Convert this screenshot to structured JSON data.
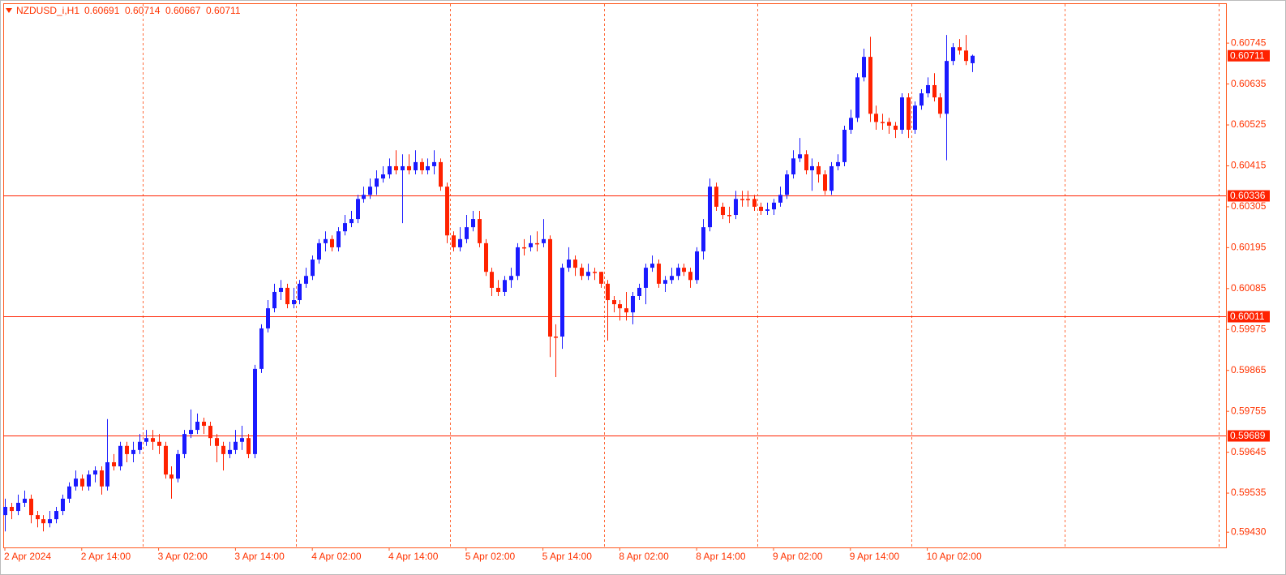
{
  "chart_data": {
    "type": "candlestick",
    "title": "NZDUSD_i,H1",
    "categories": [
      "2 Apr 2024",
      null,
      null,
      null,
      null,
      null,
      null,
      null,
      null,
      null,
      null,
      null,
      "2 Apr 14:00",
      null,
      null,
      null,
      null,
      null,
      null,
      null,
      null,
      null,
      null,
      null,
      "3 Apr 02:00",
      null,
      null,
      null,
      null,
      null,
      null,
      null,
      null,
      null,
      null,
      null,
      "3 Apr 14:00",
      null,
      null,
      null,
      null,
      null,
      null,
      null,
      null,
      null,
      null,
      null,
      "4 Apr 02:00",
      null,
      null,
      null,
      null,
      null,
      null,
      null,
      null,
      null,
      null,
      null,
      "4 Apr 14:00",
      null,
      null,
      null,
      null,
      null,
      null,
      null,
      null,
      null,
      null,
      null,
      "5 Apr 02:00",
      null,
      null,
      null,
      null,
      null,
      null,
      null,
      null,
      null,
      null,
      null,
      "5 Apr 14:00",
      null,
      null,
      null,
      null,
      null,
      null,
      null,
      null,
      null,
      null,
      null,
      "8 Apr 02:00",
      null,
      null,
      null,
      null,
      null,
      null,
      null,
      null,
      null,
      null,
      null,
      "8 Apr 14:00",
      null,
      null,
      null,
      null,
      null,
      null,
      null,
      null,
      null,
      null,
      null,
      "9 Apr 02:00",
      null,
      null,
      null,
      null,
      null,
      null,
      null,
      null,
      null,
      null,
      null,
      "9 Apr 14:00",
      null,
      null,
      null,
      null,
      null,
      null,
      null,
      null,
      null,
      null,
      null,
      "10 Apr 02:00",
      null,
      null,
      null,
      null,
      null,
      null,
      null
    ],
    "open": [
      0.59476,
      0.59498,
      0.59487,
      0.59509,
      0.5952,
      0.59476,
      0.59465,
      0.59454,
      0.59465,
      0.59487,
      0.5952,
      0.59553,
      0.59574,
      0.59553,
      0.59585,
      0.59596,
      0.59553,
      0.59618,
      0.59607,
      0.59662,
      0.5964,
      0.59651,
      0.59673,
      0.59683,
      0.59673,
      0.59662,
      0.59585,
      0.59574,
      0.5964,
      0.59694,
      0.59705,
      0.59727,
      0.59716,
      0.59683,
      0.59662,
      0.5964,
      0.59651,
      0.59673,
      0.59683,
      0.5964,
      0.59869,
      0.59978,
      0.60032,
      0.60076,
      0.60087,
      0.60043,
      0.60054,
      0.60098,
      0.60119,
      0.60163,
      0.60207,
      0.60218,
      0.60196,
      0.60239,
      0.60261,
      0.60272,
      0.60326,
      0.60337,
      0.60359,
      0.60381,
      0.60392,
      0.60414,
      0.60403,
      0.60414,
      0.60403,
      0.60425,
      0.60403,
      0.60414,
      0.60425,
      0.60359,
      0.60228,
      0.60196,
      0.60218,
      0.6025,
      0.60272,
      0.60207,
      0.6013,
      0.60087,
      0.60076,
      0.60108,
      0.60119,
      0.60196,
      0.60196,
      0.60207,
      0.60207,
      0.60218,
      0.59956,
      0.59956,
      0.60141,
      0.60163,
      0.60141,
      0.60119,
      0.6013,
      0.6013,
      0.60098,
      0.60054,
      0.60043,
      0.60032,
      0.60021,
      0.60065,
      0.60087,
      0.60141,
      0.60152,
      0.60098,
      0.60108,
      0.60119,
      0.60141,
      0.6013,
      0.60108,
      0.60185,
      0.6025,
      0.60359,
      0.60305,
      0.60283,
      0.60283,
      0.60326,
      0.60326,
      0.60326,
      0.60305,
      0.60294,
      0.60298,
      0.60316,
      0.60337,
      0.60392,
      0.60435,
      0.60446,
      0.60403,
      0.60414,
      0.60392,
      0.60348,
      0.60414,
      0.60425,
      0.60512,
      0.60544,
      0.60653,
      0.60708,
      0.60555,
      0.60533,
      0.60533,
      0.60523,
      0.60512,
      0.60599,
      0.60512,
      0.60577,
      0.6061,
      0.60632,
      0.60599,
      0.60555,
      0.60697,
      0.60734,
      0.60725,
      0.60691
    ],
    "high": [
      0.5952,
      0.59509,
      0.59531,
      0.59542,
      0.59531,
      0.59487,
      0.59476,
      0.59487,
      0.59498,
      0.59531,
      0.59564,
      0.59596,
      0.59585,
      0.59596,
      0.59607,
      0.59607,
      0.59734,
      0.5964,
      0.59673,
      0.59673,
      0.59673,
      0.59694,
      0.59705,
      0.59705,
      0.59694,
      0.59673,
      0.59607,
      0.59651,
      0.59705,
      0.5976,
      0.59749,
      0.59738,
      0.59727,
      0.59694,
      0.59673,
      0.59673,
      0.59705,
      0.59716,
      0.59694,
      0.5988,
      0.59989,
      0.60054,
      0.60098,
      0.60108,
      0.60098,
      0.60087,
      0.60108,
      0.60141,
      0.60174,
      0.60218,
      0.60239,
      0.60228,
      0.6025,
      0.60283,
      0.60294,
      0.60337,
      0.60359,
      0.60381,
      0.60403,
      0.60414,
      0.60435,
      0.60457,
      0.60446,
      0.60446,
      0.60457,
      0.60435,
      0.60435,
      0.60457,
      0.60435,
      0.6037,
      0.60239,
      0.6025,
      0.60283,
      0.60294,
      0.60294,
      0.60218,
      0.60141,
      0.60108,
      0.60119,
      0.60141,
      0.60207,
      0.60218,
      0.60228,
      0.60239,
      0.60272,
      0.60228,
      0.59989,
      0.60152,
      0.60196,
      0.60174,
      0.60152,
      0.60152,
      0.60141,
      0.6013,
      0.60108,
      0.60065,
      0.60054,
      0.60076,
      0.60076,
      0.60098,
      0.60152,
      0.60174,
      0.60163,
      0.60119,
      0.60141,
      0.60152,
      0.60152,
      0.60141,
      0.60196,
      0.60272,
      0.60381,
      0.6037,
      0.60316,
      0.60305,
      0.60348,
      0.60348,
      0.60348,
      0.60337,
      0.60316,
      0.60316,
      0.60326,
      0.60359,
      0.60403,
      0.60457,
      0.6049,
      0.60457,
      0.60435,
      0.60425,
      0.60403,
      0.60425,
      0.60446,
      0.60523,
      0.60566,
      0.60664,
      0.6073,
      0.60762,
      0.60577,
      0.60555,
      0.60544,
      0.60533,
      0.6061,
      0.6061,
      0.60588,
      0.60621,
      0.60653,
      0.60664,
      0.6061,
      0.60767,
      0.60745,
      0.60756,
      0.60767,
      0.60714
    ],
    "low": [
      0.59432,
      0.59465,
      0.59476,
      0.59498,
      0.59454,
      0.59443,
      0.59432,
      0.59443,
      0.59454,
      0.59476,
      0.59509,
      0.59542,
      0.59542,
      0.59542,
      0.59564,
      0.59531,
      0.59542,
      0.59596,
      0.59596,
      0.59618,
      0.59618,
      0.5964,
      0.59662,
      0.59651,
      0.5964,
      0.59574,
      0.5952,
      0.59564,
      0.59629,
      0.59683,
      0.59694,
      0.59694,
      0.59662,
      0.59618,
      0.59596,
      0.59629,
      0.5964,
      0.59651,
      0.59629,
      0.59629,
      0.59858,
      0.59967,
      0.60021,
      0.60054,
      0.60032,
      0.60032,
      0.60043,
      0.60087,
      0.60108,
      0.60152,
      0.60185,
      0.60185,
      0.60185,
      0.60228,
      0.6025,
      0.60261,
      0.60316,
      0.60326,
      0.60337,
      0.6037,
      0.60381,
      0.60392,
      0.60261,
      0.60392,
      0.60392,
      0.60392,
      0.60392,
      0.60392,
      0.60348,
      0.60207,
      0.60185,
      0.60185,
      0.60207,
      0.60239,
      0.60196,
      0.60119,
      0.60065,
      0.60065,
      0.60065,
      0.60087,
      0.60108,
      0.60174,
      0.60185,
      0.60185,
      0.60196,
      0.59901,
      0.59847,
      0.59923,
      0.6013,
      0.60119,
      0.60108,
      0.60108,
      0.60108,
      0.60087,
      0.59945,
      0.60021,
      0.59999,
      0.59999,
      0.59989,
      0.60054,
      0.60043,
      0.6013,
      0.60087,
      0.60076,
      0.60098,
      0.60108,
      0.60119,
      0.60087,
      0.60098,
      0.60163,
      0.60239,
      0.60294,
      0.60272,
      0.60261,
      0.60272,
      0.60305,
      0.60305,
      0.60294,
      0.60283,
      0.60283,
      0.60283,
      0.60305,
      0.60326,
      0.60381,
      0.60425,
      0.60392,
      0.60348,
      0.6037,
      0.60337,
      0.60337,
      0.60403,
      0.60414,
      0.60501,
      0.60533,
      0.60642,
      0.60533,
      0.60512,
      0.60512,
      0.60501,
      0.6049,
      0.60501,
      0.6049,
      0.60501,
      0.60566,
      0.60599,
      0.60588,
      0.60544,
      0.6043,
      0.60686,
      0.60714,
      0.60686,
      0.60667
    ],
    "close": [
      0.59498,
      0.59487,
      0.59509,
      0.5952,
      0.59476,
      0.59465,
      0.59454,
      0.59465,
      0.59487,
      0.5952,
      0.59553,
      0.59574,
      0.59553,
      0.59585,
      0.59596,
      0.59553,
      0.59618,
      0.59607,
      0.59662,
      0.5964,
      0.59651,
      0.59673,
      0.59683,
      0.59673,
      0.59662,
      0.59585,
      0.59574,
      0.5964,
      0.59694,
      0.59705,
      0.59727,
      0.59716,
      0.59683,
      0.59662,
      0.5964,
      0.59651,
      0.59673,
      0.59683,
      0.5964,
      0.59869,
      0.59978,
      0.60032,
      0.60076,
      0.60087,
      0.60043,
      0.60054,
      0.60098,
      0.60119,
      0.60163,
      0.60207,
      0.60218,
      0.60196,
      0.60239,
      0.60261,
      0.60272,
      0.60326,
      0.60337,
      0.60359,
      0.60381,
      0.60392,
      0.60414,
      0.60403,
      0.60414,
      0.60403,
      0.60425,
      0.60403,
      0.60414,
      0.60425,
      0.60359,
      0.60228,
      0.60196,
      0.60218,
      0.6025,
      0.60272,
      0.60207,
      0.6013,
      0.60087,
      0.60076,
      0.60108,
      0.60119,
      0.60196,
      0.60196,
      0.60207,
      0.60207,
      0.60218,
      0.59956,
      0.59956,
      0.60141,
      0.60163,
      0.60141,
      0.60119,
      0.6013,
      0.6013,
      0.60098,
      0.60054,
      0.60043,
      0.60032,
      0.60021,
      0.60065,
      0.60087,
      0.60141,
      0.60152,
      0.60098,
      0.60108,
      0.60119,
      0.60141,
      0.6013,
      0.60108,
      0.60185,
      0.6025,
      0.60359,
      0.60305,
      0.60283,
      0.60283,
      0.60326,
      0.60326,
      0.60326,
      0.60305,
      0.60294,
      0.60298,
      0.60316,
      0.60337,
      0.60392,
      0.60435,
      0.60446,
      0.60403,
      0.60414,
      0.60392,
      0.60348,
      0.60414,
      0.60425,
      0.60512,
      0.60544,
      0.60653,
      0.60708,
      0.60555,
      0.60533,
      0.60533,
      0.60523,
      0.60512,
      0.60599,
      0.60512,
      0.60577,
      0.6061,
      0.60632,
      0.60599,
      0.60555,
      0.60697,
      0.60734,
      0.60725,
      0.60697,
      0.60711
    ],
    "bull_color": "#1a1aff",
    "bear_color": "#ff2200",
    "line_color": "#ff2200",
    "ylim": [
      0.59389,
      0.6085
    ],
    "yticks": [
      0.60745,
      0.60635,
      0.60525,
      0.60415,
      0.60305,
      0.60195,
      0.60085,
      0.59975,
      0.59865,
      0.59755,
      0.59645,
      0.59535,
      {
        "value": 0.5943,
        "label": "0.59430"
      }
    ],
    "hlines": [
      0.60336,
      0.60011,
      0.59689
    ],
    "grid": true
  }
}
